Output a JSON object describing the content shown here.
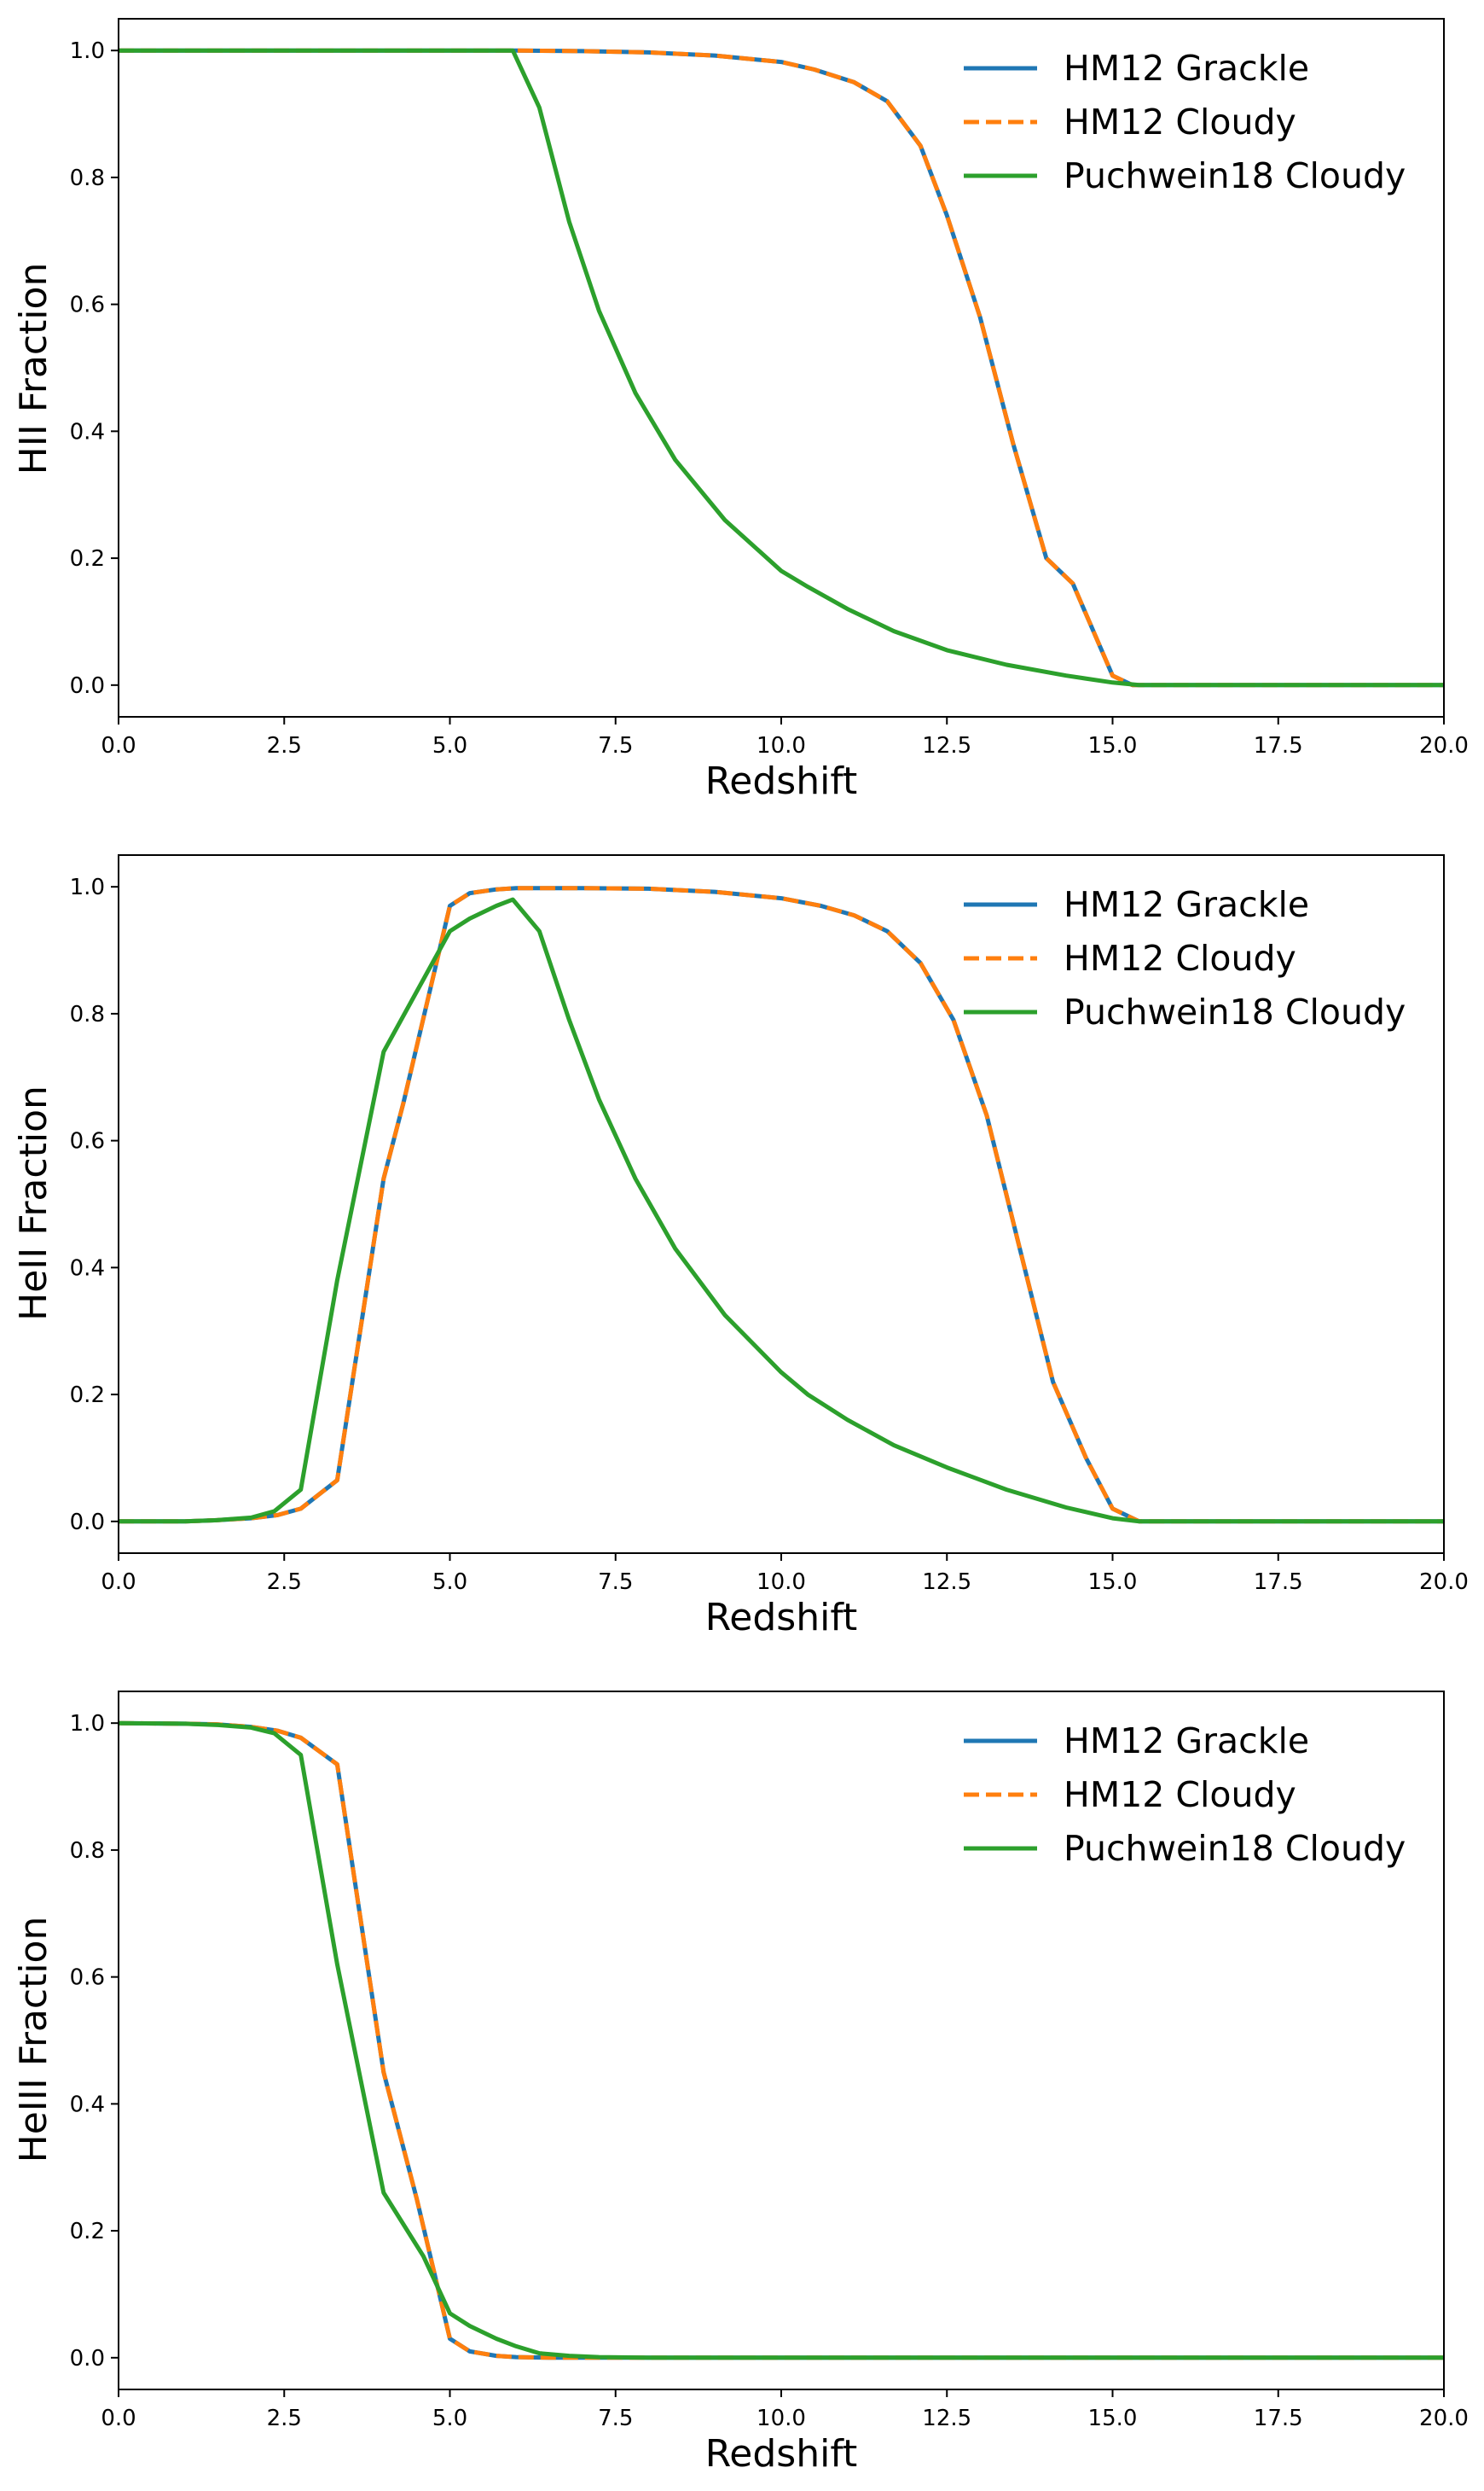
{
  "charts": [
    {
      "type": "line",
      "xlabel": "Redshift",
      "ylabel": "HII Fraction",
      "xlim": [
        0,
        20
      ],
      "ylim": [
        -0.05,
        1.05
      ],
      "xticks": [
        "0.0",
        "2.5",
        "5.0",
        "7.5",
        "10.0",
        "12.5",
        "15.0",
        "17.5",
        "20.0"
      ],
      "yticks": [
        "0.0",
        "0.2",
        "0.4",
        "0.6",
        "0.8",
        "1.0"
      ],
      "grid": false,
      "legend_position": "top-right",
      "series": [
        {
          "name": "HM12 Grackle",
          "color": "#1f77b4",
          "dash": "solid",
          "x": [
            0,
            2,
            4,
            6,
            7,
            8,
            9,
            10,
            10.5,
            11.1,
            11.6,
            12.1,
            12.5,
            13.0,
            13.5,
            14.0,
            14.4,
            15.0,
            15.3,
            16,
            18,
            20
          ],
          "y": [
            1.0,
            1.0,
            1.0,
            1.0,
            0.999,
            0.997,
            0.992,
            0.982,
            0.97,
            0.95,
            0.92,
            0.85,
            0.74,
            0.58,
            0.38,
            0.2,
            0.16,
            0.015,
            0.0,
            0.0,
            0.0,
            0.0
          ]
        },
        {
          "name": "HM12 Cloudy",
          "color": "#ff7f0e",
          "dash": "dashed",
          "x": [
            0,
            2,
            4,
            6,
            7,
            8,
            9,
            10,
            10.5,
            11.1,
            11.6,
            12.1,
            12.5,
            13.0,
            13.5,
            14.0,
            14.4,
            15.0,
            15.3,
            16,
            18,
            20
          ],
          "y": [
            1.0,
            1.0,
            1.0,
            1.0,
            0.999,
            0.997,
            0.992,
            0.982,
            0.97,
            0.95,
            0.92,
            0.85,
            0.74,
            0.58,
            0.38,
            0.2,
            0.16,
            0.015,
            0.0,
            0.0,
            0.0,
            0.0
          ]
        },
        {
          "name": "Puchwein18 Cloudy",
          "color": "#2ca02c",
          "dash": "solid",
          "x": [
            0,
            2,
            4,
            5.95,
            6.35,
            6.8,
            7.25,
            7.8,
            8.4,
            9.15,
            10.0,
            10.4,
            11.0,
            11.7,
            12.5,
            13.4,
            14.3,
            15.0,
            15.4,
            16,
            18,
            20
          ],
          "y": [
            1.0,
            1.0,
            1.0,
            1.0,
            0.91,
            0.73,
            0.59,
            0.46,
            0.355,
            0.26,
            0.18,
            0.155,
            0.12,
            0.085,
            0.055,
            0.032,
            0.015,
            0.004,
            0.0,
            0.0,
            0.0,
            0.0
          ]
        }
      ]
    },
    {
      "type": "line",
      "xlabel": "Redshift",
      "ylabel": "HeII Fraction",
      "xlim": [
        0,
        20
      ],
      "ylim": [
        -0.05,
        1.05
      ],
      "xticks": [
        "0.0",
        "2.5",
        "5.0",
        "7.5",
        "10.0",
        "12.5",
        "15.0",
        "17.5",
        "20.0"
      ],
      "yticks": [
        "0.0",
        "0.2",
        "0.4",
        "0.6",
        "0.8",
        "1.0"
      ],
      "grid": false,
      "legend_position": "top-right",
      "series": [
        {
          "name": "HM12 Grackle",
          "color": "#1f77b4",
          "dash": "solid",
          "x": [
            0,
            1.0,
            1.5,
            2.0,
            2.4,
            2.75,
            3.3,
            4.0,
            4.3,
            5.0,
            5.3,
            5.7,
            6.0,
            7.0,
            8.0,
            9.0,
            10.0,
            10.6,
            11.1,
            11.6,
            12.1,
            12.6,
            13.1,
            13.6,
            14.1,
            14.6,
            15.0,
            15.4,
            16,
            18,
            20
          ],
          "y": [
            0.0,
            0.0,
            0.002,
            0.005,
            0.01,
            0.02,
            0.065,
            0.54,
            0.66,
            0.97,
            0.99,
            0.996,
            0.998,
            0.998,
            0.997,
            0.992,
            0.982,
            0.97,
            0.955,
            0.93,
            0.88,
            0.79,
            0.64,
            0.43,
            0.22,
            0.1,
            0.02,
            0.0,
            0.0,
            0.0,
            0.0
          ]
        },
        {
          "name": "HM12 Cloudy",
          "color": "#ff7f0e",
          "dash": "dashed",
          "x": [
            0,
            1.0,
            1.5,
            2.0,
            2.4,
            2.75,
            3.3,
            4.0,
            4.3,
            5.0,
            5.3,
            5.7,
            6.0,
            7.0,
            8.0,
            9.0,
            10.0,
            10.6,
            11.1,
            11.6,
            12.1,
            12.6,
            13.1,
            13.6,
            14.1,
            14.6,
            15.0,
            15.4,
            16,
            18,
            20
          ],
          "y": [
            0.0,
            0.0,
            0.002,
            0.005,
            0.01,
            0.02,
            0.065,
            0.54,
            0.66,
            0.97,
            0.99,
            0.996,
            0.998,
            0.998,
            0.997,
            0.992,
            0.982,
            0.97,
            0.955,
            0.93,
            0.88,
            0.79,
            0.64,
            0.43,
            0.22,
            0.1,
            0.02,
            0.0,
            0.0,
            0.0,
            0.0
          ]
        },
        {
          "name": "Puchwein18 Cloudy",
          "color": "#2ca02c",
          "dash": "solid",
          "x": [
            0,
            1.0,
            1.5,
            2.0,
            2.35,
            2.75,
            3.3,
            4.0,
            5.0,
            5.3,
            5.7,
            5.95,
            6.35,
            6.8,
            7.25,
            7.8,
            8.4,
            9.15,
            10.0,
            10.4,
            11.0,
            11.7,
            12.5,
            13.4,
            14.3,
            15.0,
            15.4,
            16,
            18,
            20
          ],
          "y": [
            0.0,
            0.0,
            0.002,
            0.006,
            0.016,
            0.05,
            0.38,
            0.74,
            0.93,
            0.95,
            0.97,
            0.98,
            0.93,
            0.79,
            0.665,
            0.54,
            0.43,
            0.325,
            0.235,
            0.2,
            0.16,
            0.12,
            0.085,
            0.05,
            0.022,
            0.005,
            0.0,
            0.0,
            0.0,
            0.0
          ]
        }
      ]
    },
    {
      "type": "line",
      "xlabel": "Redshift",
      "ylabel": "HeIII Fraction",
      "xlim": [
        0,
        20
      ],
      "ylim": [
        -0.05,
        1.05
      ],
      "xticks": [
        "0.0",
        "2.5",
        "5.0",
        "7.5",
        "10.0",
        "12.5",
        "15.0",
        "17.5",
        "20.0"
      ],
      "yticks": [
        "0.0",
        "0.2",
        "0.4",
        "0.6",
        "0.8",
        "1.0"
      ],
      "grid": false,
      "legend_position": "top-right",
      "series": [
        {
          "name": "HM12 Grackle",
          "color": "#1f77b4",
          "dash": "solid",
          "x": [
            0,
            1.0,
            1.5,
            2.0,
            2.4,
            2.75,
            3.3,
            4.0,
            4.5,
            5.0,
            5.3,
            5.7,
            6.0,
            6.5,
            7.0,
            8,
            10,
            12.5,
            15,
            17.5,
            20
          ],
          "y": [
            1.0,
            0.999,
            0.998,
            0.994,
            0.988,
            0.977,
            0.935,
            0.45,
            0.25,
            0.03,
            0.01,
            0.003,
            0.001,
            0.0,
            0.0,
            0.0,
            0.0,
            0.0,
            0.0,
            0.0,
            0.0
          ]
        },
        {
          "name": "HM12 Cloudy",
          "color": "#ff7f0e",
          "dash": "dashed",
          "x": [
            0,
            1.0,
            1.5,
            2.0,
            2.4,
            2.75,
            3.3,
            4.0,
            4.5,
            5.0,
            5.3,
            5.7,
            6.0,
            6.5,
            7.0,
            8,
            10,
            12.5,
            15,
            17.5,
            20
          ],
          "y": [
            1.0,
            0.999,
            0.998,
            0.994,
            0.988,
            0.977,
            0.935,
            0.45,
            0.25,
            0.03,
            0.01,
            0.003,
            0.001,
            0.0,
            0.0,
            0.0,
            0.0,
            0.0,
            0.0,
            0.0,
            0.0
          ]
        },
        {
          "name": "Puchwein18 Cloudy",
          "color": "#2ca02c",
          "dash": "solid",
          "x": [
            0,
            1.0,
            1.5,
            2.0,
            2.35,
            2.75,
            3.3,
            4.0,
            4.6,
            5.0,
            5.3,
            5.7,
            6.0,
            6.35,
            6.8,
            7.25,
            8,
            10,
            12.5,
            15,
            17.5,
            20
          ],
          "y": [
            1.0,
            0.999,
            0.997,
            0.993,
            0.984,
            0.95,
            0.62,
            0.26,
            0.16,
            0.07,
            0.05,
            0.03,
            0.018,
            0.007,
            0.003,
            0.001,
            0.0,
            0.0,
            0.0,
            0.0,
            0.0,
            0.0
          ]
        }
      ]
    }
  ]
}
